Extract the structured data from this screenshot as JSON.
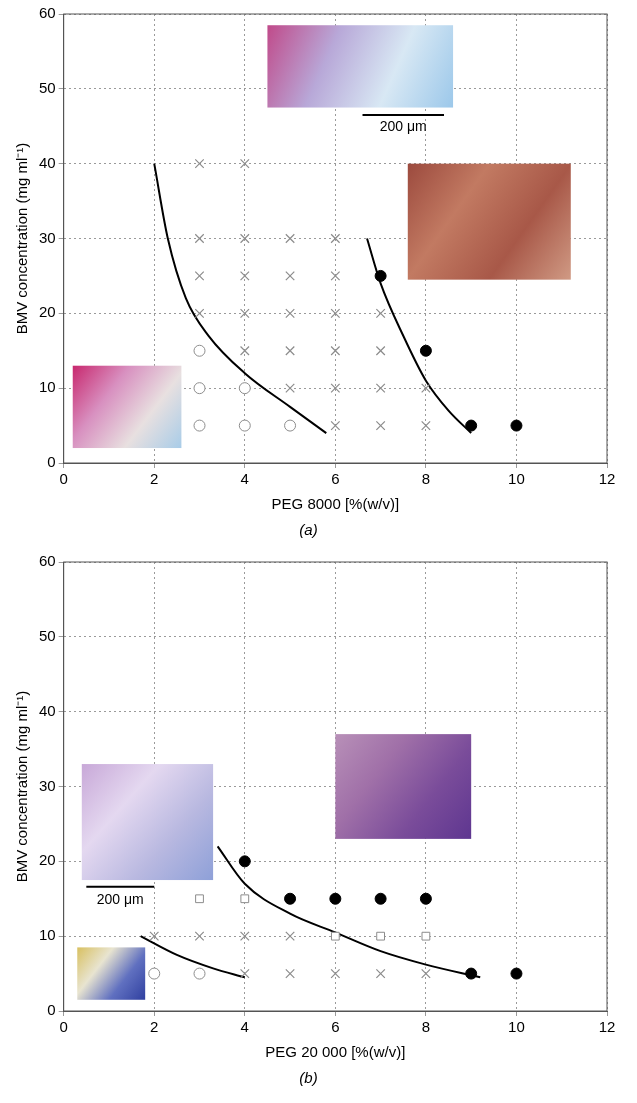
{
  "chart_data": [
    {
      "type": "scatter",
      "subtitle": "(a)",
      "x_label": "PEG 8000 [%(w/v)]",
      "y_label": "BMV concentration (mg ml⁻¹)",
      "xlim": [
        0,
        12
      ],
      "xticks": [
        0,
        2,
        4,
        6,
        8,
        10,
        12
      ],
      "ylim": [
        0,
        60
      ],
      "yticks": [
        0,
        10,
        20,
        30,
        40,
        50,
        60
      ],
      "grid": true,
      "annotations": [
        "200 μm"
      ],
      "series": [
        {
          "marker": "open_circle",
          "color": "#8c8c8c",
          "x": [
            3,
            3,
            3,
            4,
            4,
            5
          ],
          "values": [
            15,
            10,
            5,
            10,
            5,
            5
          ]
        },
        {
          "marker": "x",
          "color": "#8c8c8c",
          "x": [
            3,
            4,
            3,
            4,
            5,
            6,
            3,
            4,
            5,
            6,
            3,
            4,
            5,
            6,
            7,
            4,
            5,
            6,
            7,
            5,
            6,
            7,
            8,
            6,
            7,
            8
          ],
          "values": [
            40,
            40,
            30,
            30,
            30,
            30,
            25,
            25,
            25,
            25,
            20,
            20,
            20,
            20,
            20,
            15,
            15,
            15,
            15,
            10,
            10,
            10,
            10,
            5,
            5,
            5
          ]
        },
        {
          "marker": "filled_circle",
          "color": "#000000",
          "x": [
            7,
            8,
            9,
            10
          ],
          "values": [
            25,
            15,
            5,
            5
          ]
        },
        {
          "type": "line",
          "line_style": "solid",
          "marker": "none",
          "color": "#000000",
          "x": [
            2,
            2.3,
            2.7,
            3.2,
            4,
            5,
            5.8
          ],
          "values": [
            40,
            30,
            22,
            17,
            12,
            7.5,
            4
          ]
        },
        {
          "type": "line",
          "line_style": "solid",
          "marker": "none",
          "color": "#000000",
          "x": [
            6.7,
            7,
            7.5,
            8,
            8.5,
            9
          ],
          "values": [
            30,
            24,
            17,
            11,
            7,
            4
          ]
        }
      ]
    },
    {
      "type": "scatter",
      "subtitle": "(b)",
      "x_label": "PEG 20 000 [%(w/v)]",
      "y_label": "BMV concentration (mg ml⁻¹)",
      "xlim": [
        0,
        12
      ],
      "xticks": [
        0,
        2,
        4,
        6,
        8,
        10,
        12
      ],
      "ylim": [
        0,
        60
      ],
      "yticks": [
        0,
        10,
        20,
        30,
        40,
        50,
        60
      ],
      "grid": true,
      "annotations": [
        "200 μm"
      ],
      "series": [
        {
          "marker": "open_circle",
          "color": "#8c8c8c",
          "x": [
            2,
            3
          ],
          "values": [
            5,
            5
          ]
        },
        {
          "marker": "x",
          "color": "#8c8c8c",
          "x": [
            2,
            3,
            4,
            5,
            4,
            5,
            6,
            7,
            8
          ],
          "values": [
            10,
            10,
            10,
            10,
            5,
            5,
            5,
            5,
            5
          ]
        },
        {
          "marker": "open_square",
          "color": "#8c8c8c",
          "x": [
            3,
            4,
            6,
            7,
            8
          ],
          "values": [
            15,
            15,
            10,
            10,
            10
          ]
        },
        {
          "marker": "filled_circle",
          "color": "#000000",
          "x": [
            4,
            5,
            6,
            7,
            8,
            9,
            10
          ],
          "values": [
            20,
            15,
            15,
            15,
            15,
            5,
            5
          ]
        },
        {
          "type": "line",
          "line_style": "solid",
          "marker": "none",
          "color": "#000000",
          "x": [
            1.7,
            2.5,
            3.3,
            4
          ],
          "values": [
            10,
            7.5,
            5.7,
            4.5
          ]
        },
        {
          "type": "line",
          "line_style": "solid",
          "marker": "none",
          "color": "#000000",
          "x": [
            3.4,
            4,
            5,
            6,
            7,
            8,
            9.2
          ],
          "values": [
            22,
            17,
            13,
            10.5,
            8,
            6.2,
            4.5
          ]
        }
      ]
    }
  ]
}
